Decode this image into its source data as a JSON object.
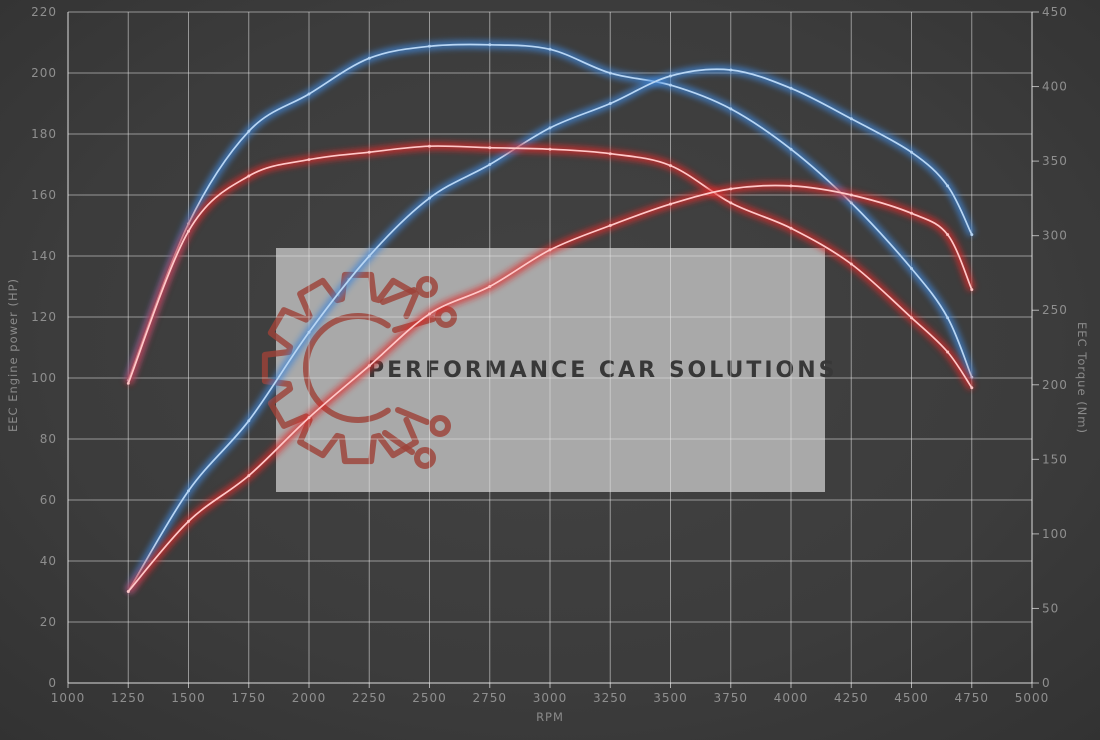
{
  "watermark": {
    "brand": "PERFORMANCE CAR SOLUTIONS"
  },
  "chart_data": {
    "type": "line",
    "title": "",
    "xlabel": "RPM",
    "ylabel_left": "EEC Engine power (HP)",
    "ylabel_right": "EEC Torque (Nm)",
    "grid": true,
    "legend": "none",
    "x_range": [
      1000,
      5000
    ],
    "y_left_range": [
      0,
      220
    ],
    "y_right_range": [
      0,
      450
    ],
    "x_ticks": [
      1000,
      1250,
      1500,
      1750,
      2000,
      2250,
      2500,
      2750,
      3000,
      3250,
      3500,
      3750,
      4000,
      4250,
      4500,
      4750,
      5000
    ],
    "y_left_ticks": [
      0,
      20,
      40,
      60,
      80,
      100,
      120,
      140,
      160,
      180,
      200,
      220
    ],
    "y_right_ticks": [
      0,
      50,
      100,
      150,
      200,
      250,
      300,
      350,
      400,
      450
    ],
    "colors": {
      "tuned": "#3f86d8",
      "stock": "#e02a2a"
    },
    "series": [
      {
        "name": "torque-tuned",
        "axis": "right",
        "unit": "Nm",
        "color": "#3f86d8",
        "core": "#b8d6f4",
        "points": [
          [
            1250,
            203
          ],
          [
            1500,
            308
          ],
          [
            1750,
            370
          ],
          [
            2000,
            395
          ],
          [
            2250,
            419
          ],
          [
            2500,
            427
          ],
          [
            2750,
            428
          ],
          [
            3000,
            425
          ],
          [
            3250,
            409
          ],
          [
            3500,
            401
          ],
          [
            3750,
            385
          ],
          [
            4000,
            358
          ],
          [
            4250,
            322
          ],
          [
            4500,
            278
          ],
          [
            4650,
            245
          ],
          [
            4750,
            205
          ]
        ]
      },
      {
        "name": "power-tuned",
        "axis": "left",
        "unit": "HP",
        "color": "#3f86d8",
        "core": "#b8d6f4",
        "points": [
          [
            1250,
            30
          ],
          [
            1500,
            63
          ],
          [
            1750,
            86
          ],
          [
            2000,
            115
          ],
          [
            2250,
            140
          ],
          [
            2500,
            159
          ],
          [
            2750,
            170
          ],
          [
            3000,
            182
          ],
          [
            3250,
            190
          ],
          [
            3500,
            199
          ],
          [
            3750,
            201
          ],
          [
            4000,
            195
          ],
          [
            4250,
            185
          ],
          [
            4500,
            174
          ],
          [
            4650,
            163
          ],
          [
            4750,
            147
          ]
        ]
      },
      {
        "name": "torque-stock",
        "axis": "right",
        "unit": "Nm",
        "color": "#e02a2a",
        "core": "#ffc9c9",
        "points": [
          [
            1250,
            201
          ],
          [
            1500,
            303
          ],
          [
            1750,
            340
          ],
          [
            2000,
            351
          ],
          [
            2250,
            356
          ],
          [
            2500,
            360
          ],
          [
            2750,
            359
          ],
          [
            3000,
            358
          ],
          [
            3250,
            355
          ],
          [
            3500,
            347
          ],
          [
            3750,
            322
          ],
          [
            4000,
            305
          ],
          [
            4250,
            281
          ],
          [
            4500,
            245
          ],
          [
            4650,
            222
          ],
          [
            4750,
            198
          ]
        ]
      },
      {
        "name": "power-stock",
        "axis": "left",
        "unit": "HP",
        "color": "#e02a2a",
        "core": "#ffc9c9",
        "points": [
          [
            1250,
            30
          ],
          [
            1500,
            53
          ],
          [
            1750,
            68
          ],
          [
            2000,
            87
          ],
          [
            2250,
            104
          ],
          [
            2500,
            121
          ],
          [
            2750,
            130
          ],
          [
            3000,
            142
          ],
          [
            3250,
            150
          ],
          [
            3500,
            157
          ],
          [
            3750,
            162
          ],
          [
            4000,
            163
          ],
          [
            4250,
            160
          ],
          [
            4500,
            154
          ],
          [
            4650,
            147
          ],
          [
            4750,
            129
          ]
        ]
      }
    ]
  }
}
